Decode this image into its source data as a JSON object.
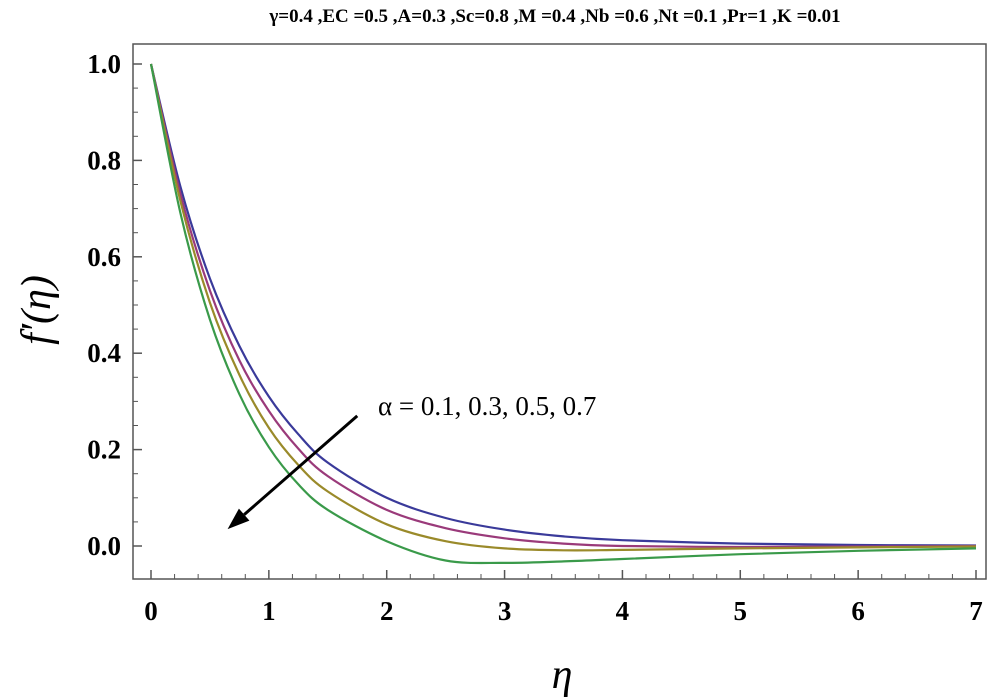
{
  "chart_data": {
    "type": "line",
    "title": "γ=0.4 ,EC =0.5 ,A=0.3 ,Sc=0.8 ,M =0.4 ,Nb =0.6 ,Nt =0.1 ,Pr=1 ,K =0.01",
    "xlabel": "η",
    "ylabel": "f′(η)",
    "xlim": [
      0,
      7
    ],
    "ylim": [
      -0.07,
      1.05
    ],
    "xticks": [
      "0",
      "1",
      "2",
      "3",
      "4",
      "5",
      "6",
      "7"
    ],
    "yticks": [
      "0.0",
      "0.2",
      "0.4",
      "0.6",
      "0.8",
      "1.0"
    ],
    "grid": false,
    "annotation": "α = 0.1, 0.3, 0.5, 0.7",
    "annotation_arrow": {
      "from": [
        1.75,
        0.27
      ],
      "to": [
        0.65,
        0.035
      ]
    },
    "series": [
      {
        "color": "#3a3a9a",
        "x": [
          0,
          0.25,
          0.5,
          0.75,
          1,
          1.25,
          1.5,
          2,
          2.5,
          3,
          3.5,
          4,
          5,
          6,
          7
        ],
        "y": [
          1.0,
          0.745,
          0.555,
          0.415,
          0.31,
          0.232,
          0.173,
          0.1,
          0.058,
          0.034,
          0.02,
          0.012,
          0.005,
          0.002,
          0.001
        ]
      },
      {
        "color": "#9a3a7a",
        "x": [
          0,
          0.25,
          0.5,
          0.75,
          1,
          1.25,
          1.5,
          2,
          2.5,
          3,
          3.5,
          4,
          5,
          6,
          7
        ],
        "y": [
          1.0,
          0.73,
          0.53,
          0.385,
          0.28,
          0.202,
          0.145,
          0.075,
          0.037,
          0.016,
          0.005,
          0.0,
          -0.002,
          -0.001,
          0.0
        ]
      },
      {
        "color": "#9a8a2a",
        "x": [
          0,
          0.25,
          0.5,
          0.75,
          1,
          1.25,
          1.5,
          2,
          2.5,
          3,
          3.5,
          4,
          5,
          6,
          7
        ],
        "y": [
          1.0,
          0.715,
          0.505,
          0.355,
          0.245,
          0.168,
          0.113,
          0.045,
          0.01,
          -0.005,
          -0.009,
          -0.008,
          -0.005,
          -0.003,
          -0.001
        ]
      },
      {
        "color": "#3a9a4a",
        "x": [
          0,
          0.25,
          0.5,
          0.75,
          1,
          1.25,
          1.5,
          2,
          2.5,
          3,
          3.5,
          4,
          5,
          6,
          7
        ],
        "y": [
          1.0,
          0.69,
          0.47,
          0.315,
          0.205,
          0.128,
          0.075,
          0.01,
          -0.03,
          -0.035,
          -0.032,
          -0.027,
          -0.017,
          -0.01,
          -0.005
        ]
      }
    ]
  }
}
